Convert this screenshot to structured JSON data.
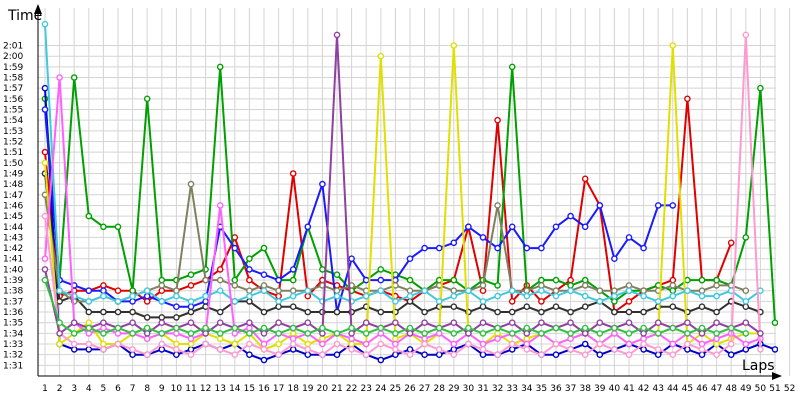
{
  "chart_data": {
    "type": "line",
    "ylabel": "Time",
    "xlabel": "Laps",
    "x": [
      1,
      2,
      3,
      4,
      5,
      6,
      7,
      8,
      9,
      10,
      11,
      12,
      13,
      14,
      15,
      16,
      17,
      18,
      19,
      20,
      21,
      22,
      23,
      24,
      25,
      26,
      27,
      28,
      29,
      30,
      31,
      32,
      33,
      34,
      35,
      36,
      37,
      38,
      39,
      40,
      41,
      42,
      43,
      44,
      45,
      46,
      47,
      48,
      49,
      50,
      51,
      52
    ],
    "ylim": [
      90,
      122
    ],
    "yticks": [
      91,
      92,
      93,
      94,
      95,
      96,
      97,
      98,
      99,
      100,
      101,
      102,
      103,
      104,
      105,
      106,
      107,
      108,
      109,
      110,
      111,
      112,
      113,
      114,
      115,
      116,
      117,
      118,
      119,
      120,
      121
    ],
    "ytick_labels": [
      "1:31",
      "1:32",
      "1:33",
      "1:34",
      "1:35",
      "1:36",
      "1:37",
      "1:38",
      "1:39",
      "1:40",
      "1:41",
      "1:42",
      "1:43",
      "1:44",
      "1:45",
      "1:46",
      "1:47",
      "1:48",
      "1:49",
      "1:50",
      "1:51",
      "1:52",
      "1:53",
      "1:54",
      "1:55",
      "1:56",
      "1:57",
      "1:58",
      "1:59",
      "2:00",
      "2:01"
    ],
    "grid": true,
    "series": [
      {
        "color": "#e00000",
        "values": [
          111,
          97.5,
          98,
          98,
          98.5,
          98,
          98,
          97,
          98,
          98,
          98.5,
          99,
          100,
          103,
          99,
          98,
          97.5,
          109,
          97.5,
          99,
          98.5,
          98,
          97.5,
          98,
          97.5,
          97,
          98,
          98.5,
          99,
          104,
          98,
          114,
          97,
          98.5,
          97,
          98,
          99,
          108.5,
          106,
          96,
          97,
          98,
          98.5,
          99,
          116,
          99,
          99,
          102.5,
          null,
          null,
          null,
          null
        ]
      },
      {
        "color": "#00a000",
        "values": [
          116,
          99,
          118,
          105,
          104,
          104,
          98,
          116,
          99,
          99,
          99.5,
          100,
          119,
          99,
          101,
          102,
          99,
          99,
          104,
          100,
          99.5,
          98,
          99,
          100,
          99.5,
          99,
          98,
          99,
          99,
          98,
          99,
          98.5,
          119,
          98,
          99,
          99,
          98.5,
          99,
          98,
          97,
          98,
          98,
          98.5,
          98,
          99,
          99,
          99,
          98.5,
          103,
          117,
          95,
          null
        ]
      },
      {
        "color": "#0000c8",
        "values": [
          117,
          93,
          92.5,
          92.5,
          92.5,
          93,
          92,
          92,
          92.5,
          92,
          92.5,
          93,
          92.5,
          93,
          92,
          91.5,
          92,
          92.5,
          92,
          92,
          92,
          93,
          92,
          91.5,
          92,
          92.5,
          92,
          92,
          92.5,
          93,
          92,
          92,
          92.5,
          93,
          92,
          92,
          92.5,
          93,
          92,
          92.5,
          93,
          92.5,
          92,
          93,
          92.5,
          92,
          93,
          92,
          92.5,
          93,
          92.5,
          null
        ]
      },
      {
        "color": "#1a1aff",
        "values": [
          115,
          99,
          98.5,
          98,
          98,
          97,
          97,
          97.5,
          97,
          96.5,
          96.5,
          97,
          104,
          102,
          100,
          99.5,
          99,
          100,
          104,
          108,
          96,
          101,
          99,
          99,
          99,
          101,
          102,
          102,
          102.5,
          104,
          103,
          102,
          104,
          102,
          102,
          104,
          105,
          104,
          106,
          101,
          103,
          102,
          106,
          106,
          null,
          null,
          null,
          null,
          null,
          null,
          null,
          null
        ]
      },
      {
        "color": "#303030",
        "values": [
          109,
          97,
          97.5,
          96,
          96,
          96,
          96,
          95.5,
          95.5,
          95.5,
          96,
          96.5,
          96,
          97,
          97,
          96,
          96.5,
          96.5,
          96,
          96,
          96,
          96,
          96.5,
          96,
          96,
          97,
          96,
          96.5,
          96.5,
          96,
          96.5,
          96,
          96,
          96.5,
          96,
          96.5,
          96,
          96.5,
          97,
          96,
          96,
          96,
          96.5,
          96.5,
          96,
          96.5,
          96,
          97,
          96.5,
          96,
          null,
          null
        ]
      },
      {
        "color": "#808060",
        "values": [
          107,
          98,
          97,
          97,
          97.5,
          97,
          97.5,
          98,
          98.5,
          98,
          108,
          99,
          99,
          98.5,
          98,
          98.5,
          98,
          98,
          98,
          98.5,
          98,
          98.5,
          98,
          98,
          98.5,
          98,
          98,
          98.5,
          98,
          98,
          98.5,
          106,
          98,
          98,
          98.5,
          98,
          98,
          98.5,
          98,
          98,
          98.5,
          98,
          98,
          98.5,
          98,
          98,
          98.5,
          98.5,
          98,
          null,
          null,
          null
        ]
      },
      {
        "color": "#e0e000",
        "values": [
          110,
          93,
          94,
          95,
          93,
          93,
          94,
          93.5,
          94,
          93,
          93,
          94,
          93.5,
          93,
          94,
          92.5,
          93,
          94,
          93,
          93.5,
          94,
          93,
          93,
          120,
          93.5,
          94,
          93,
          94,
          121,
          94,
          93,
          94,
          93,
          93.5,
          94,
          93,
          93.5,
          94,
          93,
          94,
          93,
          93.5,
          94,
          121,
          93,
          94,
          93,
          93.5,
          94,
          94,
          null,
          null
        ]
      },
      {
        "color": "#40c8e0",
        "values": [
          123,
          98,
          97.5,
          97,
          97.5,
          97,
          97.5,
          98,
          97,
          97.5,
          97,
          97.5,
          98,
          97,
          97.5,
          98,
          97,
          97.5,
          98,
          97,
          97.5,
          97,
          97.5,
          98,
          97,
          97.5,
          98,
          97,
          97.5,
          98,
          97,
          97.5,
          98,
          97.5,
          98,
          97.5,
          98,
          97.5,
          97,
          97.5,
          98,
          97.5,
          97,
          97.5,
          98,
          97.5,
          97.5,
          98,
          97,
          98,
          null,
          null
        ]
      },
      {
        "color": "#ff60ff",
        "values": [
          101,
          118,
          95,
          94,
          94.5,
          94,
          94,
          93.5,
          94,
          94,
          93.5,
          94,
          106,
          94,
          94.5,
          93,
          94,
          93.5,
          94,
          93,
          94,
          93.5,
          93,
          94,
          93,
          94,
          93.5,
          94,
          93,
          94,
          93,
          93.5,
          94,
          93,
          94,
          93,
          93.5,
          94,
          93,
          94,
          93,
          93.5,
          94,
          93,
          94,
          93,
          93.5,
          94,
          93,
          93.5,
          null,
          null
        ]
      },
      {
        "color": "#ff9ad0",
        "values": [
          105,
          94,
          93,
          93,
          92.5,
          93,
          92.5,
          92,
          93,
          92.5,
          92,
          93,
          92.5,
          92,
          93,
          92.5,
          92,
          93,
          92.5,
          92,
          93,
          92.5,
          92,
          93,
          92.5,
          92,
          93,
          92.5,
          92,
          93,
          92.5,
          92,
          93,
          92.5,
          92,
          93,
          92.5,
          92,
          93,
          92.5,
          92,
          93,
          92.5,
          92,
          93,
          92.5,
          92,
          93,
          122,
          92.5,
          null,
          null
        ]
      },
      {
        "color": "#9040a0",
        "values": [
          100,
          94,
          95,
          94.5,
          95,
          94.5,
          95,
          94,
          95,
          94.5,
          95,
          94,
          95,
          94.5,
          95,
          94,
          95,
          94.5,
          95,
          94,
          122,
          94,
          95,
          94.5,
          95,
          94,
          95,
          94.5,
          95,
          94,
          95,
          94.5,
          95,
          94,
          95,
          94.5,
          95,
          94,
          95,
          94.5,
          95,
          94,
          95,
          94.5,
          95,
          94,
          95,
          94.5,
          95,
          94,
          null,
          null
        ]
      },
      {
        "color": "#30c040",
        "values": [
          99,
          95,
          94,
          94.5,
          94,
          94.5,
          94,
          94.5,
          94,
          94.5,
          94,
          94.5,
          94,
          94.5,
          94,
          94.5,
          94,
          94.5,
          94,
          94.5,
          94,
          94.5,
          94,
          94.5,
          94,
          94.5,
          94,
          94.5,
          94,
          94.5,
          94,
          94.5,
          94,
          94.5,
          94,
          94.5,
          94,
          94.5,
          94,
          94.5,
          94,
          94.5,
          94,
          94.5,
          94,
          94.5,
          94,
          94.5,
          94,
          null,
          null,
          null
        ]
      }
    ]
  }
}
